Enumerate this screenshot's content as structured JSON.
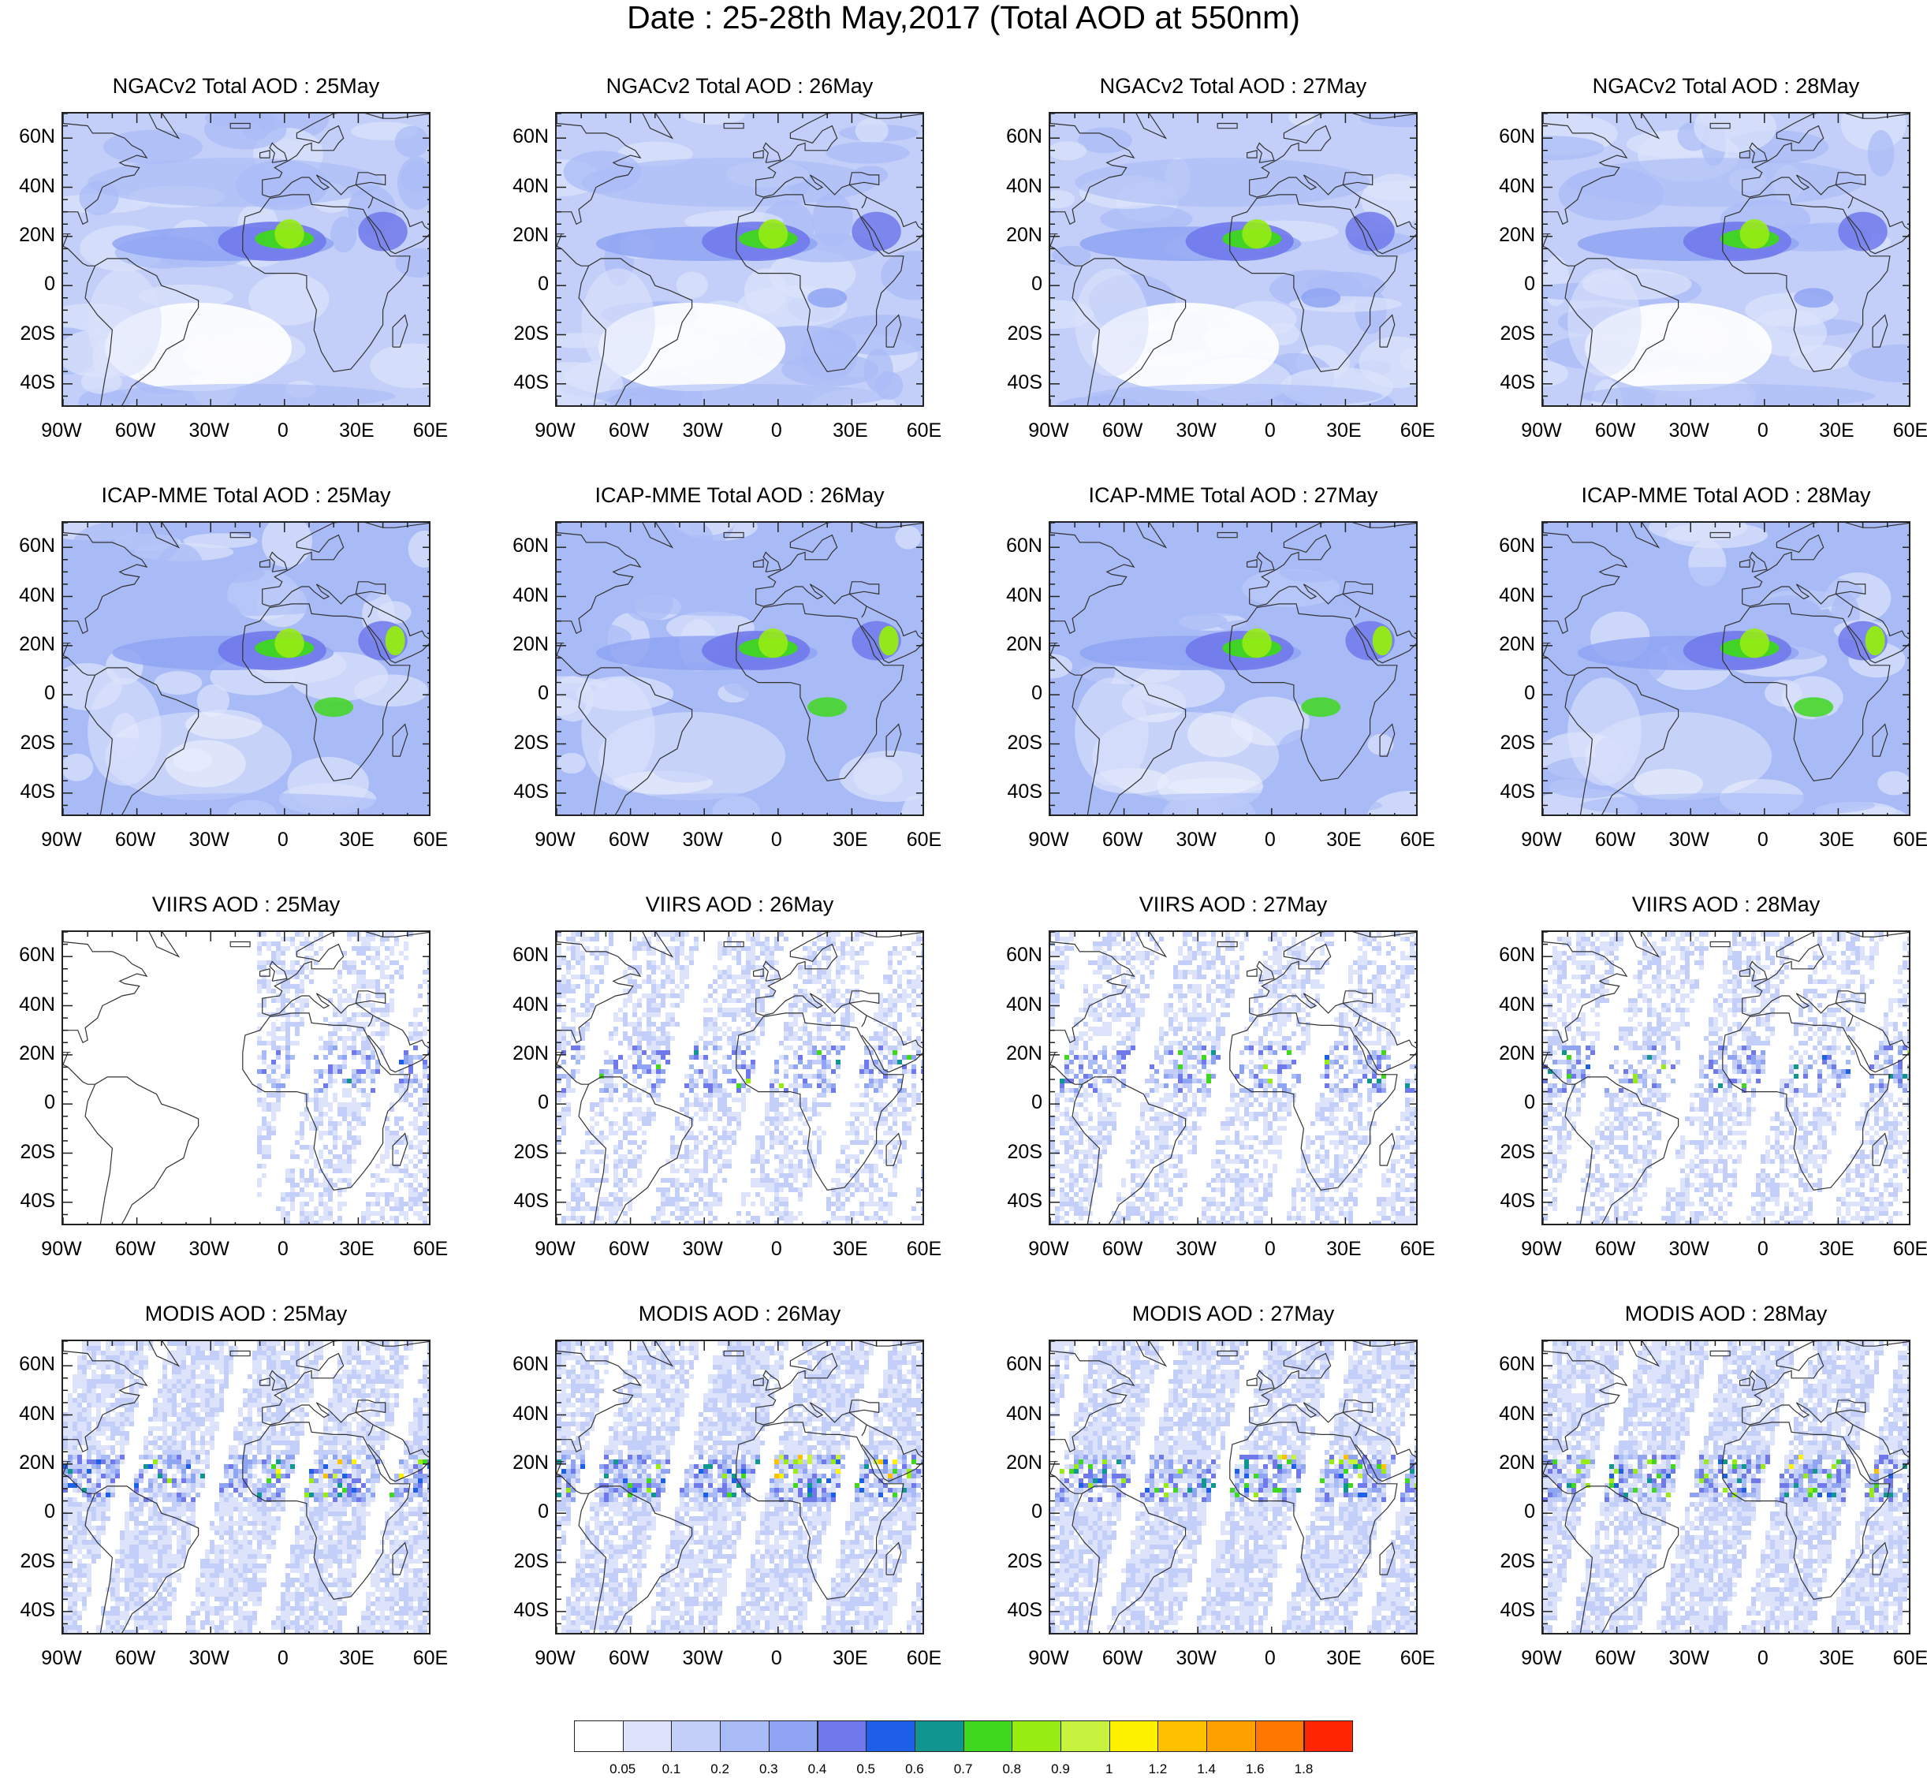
{
  "title": "Date : 25-28th May,2017 (Total AOD at 550nm)",
  "rows": [
    {
      "product": "NGACv2 Total AOD",
      "kind": "model"
    },
    {
      "product": "ICAP-MME Total AOD",
      "kind": "model"
    },
    {
      "product": "VIIRS AOD",
      "kind": "satellite"
    },
    {
      "product": "MODIS AOD",
      "kind": "satellite"
    }
  ],
  "panels": [
    {
      "title": "NGACv2 Total AOD : 25May"
    },
    {
      "title": "NGACv2 Total AOD : 26May"
    },
    {
      "title": "NGACv2 Total AOD : 27May"
    },
    {
      "title": "NGACv2 Total AOD : 28May"
    },
    {
      "title": "ICAP-MME Total AOD : 25May"
    },
    {
      "title": "ICAP-MME Total AOD : 26May"
    },
    {
      "title": "ICAP-MME Total AOD : 27May"
    },
    {
      "title": "ICAP-MME Total AOD : 28May"
    },
    {
      "title": "VIIRS AOD : 25May"
    },
    {
      "title": "VIIRS AOD : 26May"
    },
    {
      "title": "VIIRS AOD : 27May"
    },
    {
      "title": "VIIRS AOD : 28May"
    },
    {
      "title": "MODIS AOD : 25May"
    },
    {
      "title": "MODIS AOD : 26May"
    },
    {
      "title": "MODIS AOD : 27May"
    },
    {
      "title": "MODIS AOD : 28May"
    }
  ],
  "map_extent": {
    "lon": [
      -90,
      60
    ],
    "lat": [
      -50,
      70
    ]
  },
  "lat_ticks": [
    {
      "label": "60N",
      "lat": 60
    },
    {
      "label": "40N",
      "lat": 40
    },
    {
      "label": "20N",
      "lat": 20
    },
    {
      "label": "0",
      "lat": 0
    },
    {
      "label": "20S",
      "lat": -20
    },
    {
      "label": "40S",
      "lat": -40
    }
  ],
  "lon_ticks": [
    {
      "label": "90W",
      "lon": -90
    },
    {
      "label": "60W",
      "lon": -60
    },
    {
      "label": "30W",
      "lon": -30
    },
    {
      "label": "0",
      "lon": 0
    },
    {
      "label": "30E",
      "lon": 30
    },
    {
      "label": "60E",
      "lon": 60
    }
  ],
  "colorbar": {
    "colors": [
      "#ffffff",
      "#dce3fb",
      "#c3cff8",
      "#a9bbf6",
      "#8fa5f3",
      "#7079eb",
      "#1e5fe8",
      "#10958f",
      "#3fd81e",
      "#97ec12",
      "#c7f23e",
      "#fff200",
      "#ffc000",
      "#ff9f00",
      "#ff7700",
      "#ff2600"
    ],
    "labels": [
      "0.05",
      "0.1",
      "0.2",
      "0.3",
      "0.4",
      "0.5",
      "0.6",
      "0.7",
      "0.8",
      "0.9",
      "1",
      "1.2",
      "1.4",
      "1.6",
      "1.8"
    ]
  }
}
